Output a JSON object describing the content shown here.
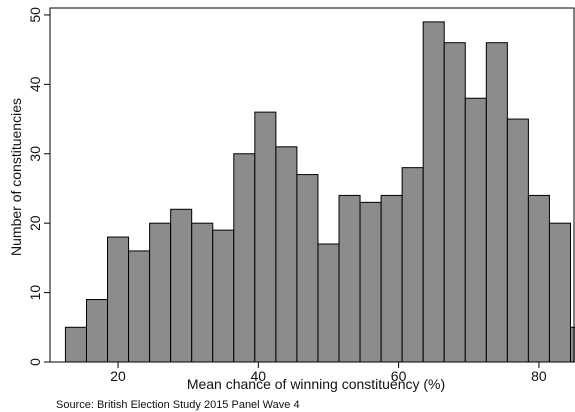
{
  "chart_data": {
    "type": "bar",
    "xlabel": "Mean chance of winning constituency (%)",
    "ylabel": "Number of constituencies",
    "xlim": [
      10.3,
      85
    ],
    "ylim": [
      0,
      51
    ],
    "xticks": [
      "20",
      "40",
      "60",
      "80"
    ],
    "yticks": [
      "0",
      "10",
      "20",
      "30",
      "40",
      "50"
    ],
    "bin_width": 3.0,
    "bins": [
      {
        "x0": 12.5,
        "value": 5
      },
      {
        "x0": 15.5,
        "value": 9
      },
      {
        "x0": 18.5,
        "value": 18
      },
      {
        "x0": 21.5,
        "value": 16
      },
      {
        "x0": 24.5,
        "value": 20
      },
      {
        "x0": 27.5,
        "value": 22
      },
      {
        "x0": 30.5,
        "value": 20
      },
      {
        "x0": 33.5,
        "value": 19
      },
      {
        "x0": 36.5,
        "value": 30
      },
      {
        "x0": 39.5,
        "value": 36
      },
      {
        "x0": 42.5,
        "value": 31
      },
      {
        "x0": 45.5,
        "value": 27
      },
      {
        "x0": 48.5,
        "value": 17
      },
      {
        "x0": 51.5,
        "value": 24
      },
      {
        "x0": 54.5,
        "value": 23
      },
      {
        "x0": 57.5,
        "value": 24
      },
      {
        "x0": 60.5,
        "value": 28
      },
      {
        "x0": 63.5,
        "value": 49
      },
      {
        "x0": 66.5,
        "value": 46
      },
      {
        "x0": 69.5,
        "value": 38
      },
      {
        "x0": 72.5,
        "value": 46
      },
      {
        "x0": 75.5,
        "value": 35
      },
      {
        "x0": 78.5,
        "value": 24
      },
      {
        "x0": 81.5,
        "value": 20
      },
      {
        "x0": 84.5,
        "value": 5
      }
    ],
    "bar_color": "#8c8c8c",
    "bar_edge_color": "#000000",
    "grid": false
  },
  "note": "Source: British Election Study 2015 Panel Wave 4"
}
